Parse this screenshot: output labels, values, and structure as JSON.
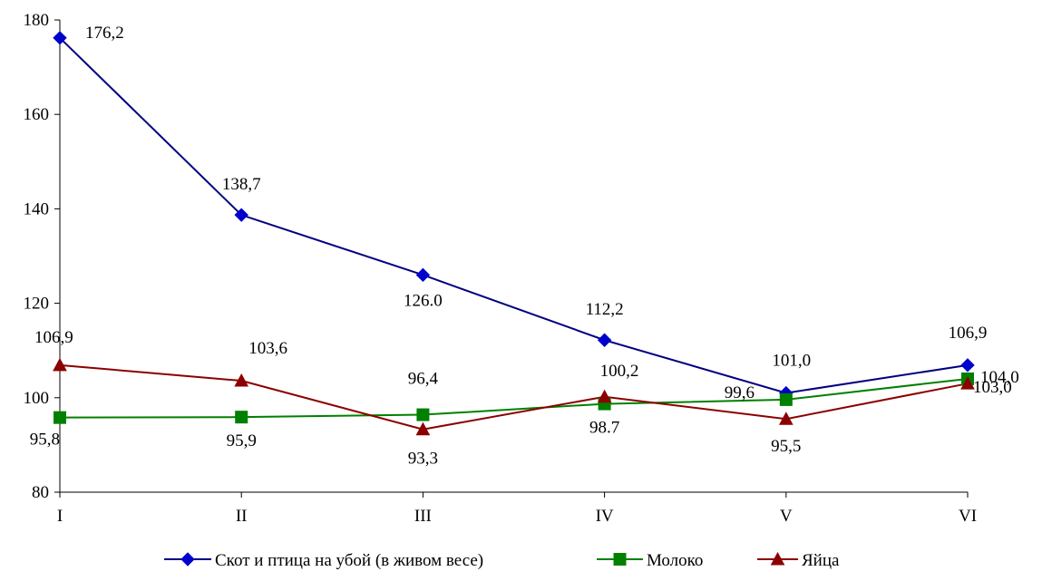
{
  "chart_data": {
    "type": "line",
    "categories": [
      "I",
      "II",
      "III",
      "IV",
      "V",
      "VI"
    ],
    "ylim": [
      80,
      180
    ],
    "yticks": [
      80,
      100,
      120,
      140,
      160,
      180
    ],
    "grid": false,
    "legend_position": "bottom",
    "series": [
      {
        "name": "Скот и птица на убой (в живом весе)",
        "color": "#0000CC",
        "line_color": "#000080",
        "marker": "diamond",
        "values": [
          176.2,
          138.7,
          126.0,
          112.2,
          101.0,
          106.9
        ],
        "labels": [
          "176,2",
          "138,7",
          "126.0",
          "112,2",
          "101,0",
          "106,9"
        ]
      },
      {
        "name": "Молоко",
        "color": "#008000",
        "line_color": "#008000",
        "marker": "square",
        "values": [
          95.8,
          95.9,
          96.4,
          98.7,
          99.6,
          104.0
        ],
        "labels": [
          "95,8",
          "95,9",
          "96,4",
          "98.7",
          "99,6",
          "104,0"
        ]
      },
      {
        "name": "Яйца",
        "color": "#8B0000",
        "line_color": "#8B0000",
        "marker": "triangle",
        "values": [
          106.9,
          103.6,
          93.3,
          100.2,
          95.5,
          103.0
        ],
        "labels": [
          "106,9",
          "103,6",
          "93,3",
          "100,2",
          "95,5",
          "103,0"
        ]
      }
    ]
  }
}
